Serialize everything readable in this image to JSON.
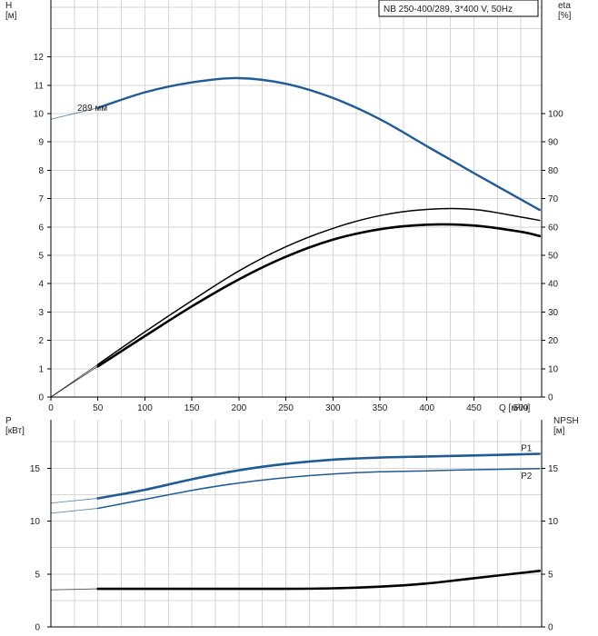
{
  "chart_data": [
    {
      "id": "head-efficiency",
      "type": "line",
      "title": "NB 250-400/289, 3*400 V, 50Hz",
      "xlabel": "Q [м³/ч]",
      "ylabel": "H\n[м]",
      "y2label": "eta\n[%]",
      "xlim": [
        0,
        520
      ],
      "ylim": [
        0,
        13
      ],
      "y2lim": [
        0,
        130
      ],
      "xticks": [
        0,
        50,
        100,
        150,
        200,
        250,
        300,
        350,
        400,
        450,
        500
      ],
      "yticks": [
        0,
        1,
        2,
        3,
        4,
        5,
        6,
        7,
        8,
        9,
        10,
        11,
        12
      ],
      "y2ticks": [
        0,
        10,
        20,
        30,
        40,
        50,
        60,
        70,
        80,
        90,
        100
      ],
      "grid": true,
      "series": [
        {
          "name": "289 мм",
          "color": "#1f5b96",
          "axis": "left",
          "extrapolated_x": [
            0,
            50
          ],
          "x": [
            50,
            100,
            150,
            200,
            250,
            300,
            350,
            400,
            450,
            520
          ],
          "y": [
            10.2,
            10.75,
            11.1,
            11.25,
            11.05,
            10.55,
            9.8,
            8.85,
            7.9,
            6.6
          ],
          "extrapolated_y": [
            9.8,
            10.2
          ]
        },
        {
          "name": "",
          "color": "#000000",
          "axis": "right",
          "extrapolated_x": [
            0,
            50
          ],
          "x": [
            50,
            100,
            150,
            200,
            250,
            300,
            350,
            400,
            450,
            500,
            520
          ],
          "y": [
            11.5,
            23,
            34,
            44.5,
            53,
            59.5,
            64,
            66.2,
            66.2,
            63.5,
            62.3
          ],
          "extrapolated_y": [
            0,
            11.5
          ]
        },
        {
          "name": "",
          "color": "#000000",
          "axis": "right",
          "bold": true,
          "extrapolated_x": [
            0,
            50
          ],
          "x": [
            50,
            100,
            150,
            200,
            250,
            300,
            350,
            400,
            450,
            500,
            520
          ],
          "y": [
            10.8,
            21.5,
            32,
            41.5,
            49.5,
            55.5,
            59.2,
            60.8,
            60.5,
            58.3,
            56.8
          ],
          "extrapolated_y": [
            0,
            10.8
          ]
        }
      ]
    },
    {
      "id": "power-npsh",
      "type": "line",
      "xlabel": "",
      "ylabel": "P\n[кВт]",
      "y2label": "NPSH\n[м]",
      "xlim": [
        0,
        520
      ],
      "ylim": [
        0,
        20
      ],
      "y2lim": [
        0,
        20
      ],
      "yticks": [
        0,
        5,
        10,
        15
      ],
      "y2ticks": [
        0,
        5,
        10,
        15
      ],
      "grid": true,
      "series": [
        {
          "name": "P1",
          "color": "#1f5b96",
          "axis": "left",
          "bold": true,
          "extrapolated_x": [
            0,
            50
          ],
          "x": [
            50,
            100,
            150,
            200,
            250,
            300,
            350,
            400,
            450,
            520
          ],
          "y": [
            12.15,
            12.95,
            13.95,
            14.8,
            15.4,
            15.8,
            16.0,
            16.1,
            16.2,
            16.35
          ],
          "extrapolated_y": [
            11.7,
            12.15
          ]
        },
        {
          "name": "P2",
          "color": "#1f5b96",
          "axis": "left",
          "extrapolated_x": [
            0,
            50
          ],
          "x": [
            50,
            100,
            150,
            200,
            250,
            300,
            350,
            400,
            450,
            520
          ],
          "y": [
            11.2,
            12.05,
            12.9,
            13.6,
            14.1,
            14.45,
            14.65,
            14.75,
            14.85,
            14.95
          ],
          "extrapolated_y": [
            10.75,
            11.2
          ]
        },
        {
          "name": "",
          "color": "#000000",
          "axis": "right",
          "bold": true,
          "extrapolated_x": [
            0,
            50
          ],
          "x": [
            50,
            100,
            150,
            200,
            250,
            300,
            350,
            400,
            450,
            520
          ],
          "y": [
            3.6,
            3.6,
            3.6,
            3.6,
            3.6,
            3.65,
            3.8,
            4.1,
            4.6,
            5.3
          ],
          "extrapolated_y": [
            3.5,
            3.6
          ]
        }
      ]
    }
  ]
}
